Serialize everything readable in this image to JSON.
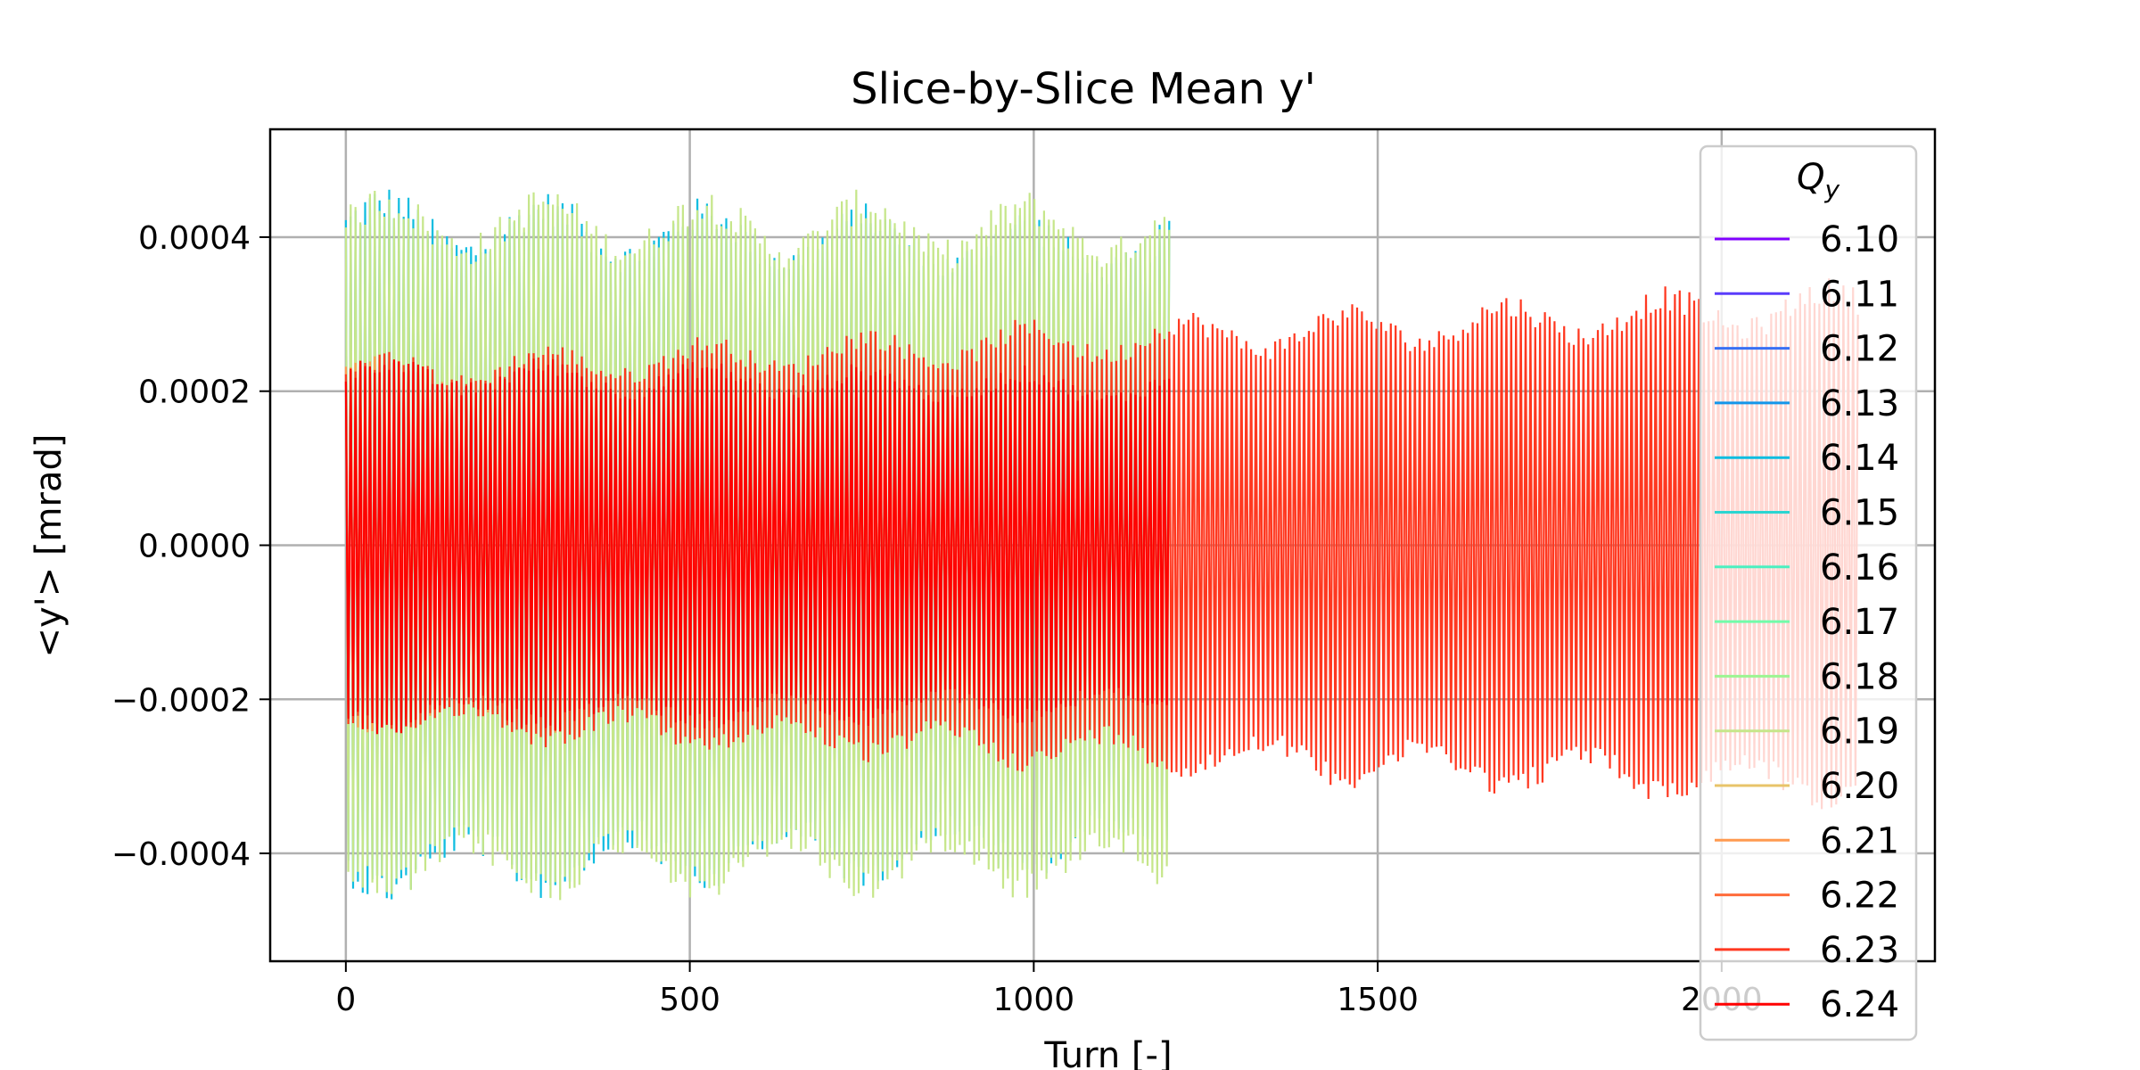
{
  "chart_data": {
    "type": "line",
    "title": "Slice-by-Slice Mean y'",
    "xlabel": "Turn [-]",
    "ylabel": "<y'> [mrad]",
    "xlim": [
      -110,
      2310
    ],
    "ylim": [
      -0.00054,
      0.00054
    ],
    "x_ticks": [
      0,
      500,
      1000,
      1500,
      2000
    ],
    "x_tick_labels": [
      "0",
      "500",
      "1000",
      "1500",
      "2000"
    ],
    "y_ticks": [
      0.0004,
      0.0002,
      0.0,
      -0.0002,
      -0.0004
    ],
    "y_tick_labels": [
      "0.0004",
      "0.0002",
      "0.0000",
      "−0.0002",
      "−0.0004"
    ],
    "grid": true,
    "legend": {
      "title_main": "Q",
      "title_sub": "y",
      "placement": "right",
      "entries": [
        {
          "label": "6.10",
          "color": "#8000ff"
        },
        {
          "label": "6.11",
          "color": "#5a3cfb"
        },
        {
          "label": "6.12",
          "color": "#3870f4"
        },
        {
          "label": "6.13",
          "color": "#1496ea"
        },
        {
          "label": "6.14",
          "color": "#10bde0"
        },
        {
          "label": "6.15",
          "color": "#2cd5d1"
        },
        {
          "label": "6.16",
          "color": "#4cefc0"
        },
        {
          "label": "6.17",
          "color": "#72fcaa"
        },
        {
          "label": "6.18",
          "color": "#9cf592"
        },
        {
          "label": "6.19",
          "color": "#c6e68a"
        },
        {
          "label": "6.20",
          "color": "#e8c46a"
        },
        {
          "label": "6.21",
          "color": "#ff9a50"
        },
        {
          "label": "6.22",
          "color": "#ff6b3a"
        },
        {
          "label": "6.23",
          "color": "#ff3820"
        },
        {
          "label": "6.24",
          "color": "#ff0000"
        }
      ]
    },
    "series": [
      {
        "name": "6.14",
        "color": "#10bde0",
        "x_range": [
          0,
          1200
        ],
        "amplitude_start": 0.00047,
        "amplitude_end": 0.00043,
        "segment": "early"
      },
      {
        "name": "6.19",
        "color": "#c6e68a",
        "x_range": [
          0,
          1200
        ],
        "amplitude_start": 0.00047,
        "amplitude_end": 0.00046
      },
      {
        "name": "6.21",
        "color": "#ff9a50",
        "x_range": [
          0,
          1200
        ],
        "amplitude_start": 0.00025,
        "amplitude_end": 0.00024
      },
      {
        "name": "6.23",
        "color": "#ff3820",
        "x_range": [
          0,
          2200
        ],
        "amplitude_start": 0.00025,
        "amplitude_end": 0.00035
      },
      {
        "name": "6.24",
        "color": "#ff0000",
        "x_range": [
          0,
          1200
        ],
        "amplitude_start": 0.00025,
        "amplitude_end": 0.00023
      }
    ]
  }
}
